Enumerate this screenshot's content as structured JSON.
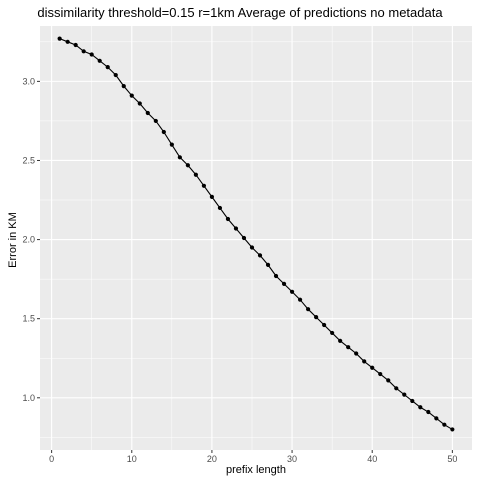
{
  "chart_data": {
    "type": "line",
    "title": "dissimilarity threshold=0.15   r=1km  Average of predictions  no metadata",
    "xlabel": "prefix length",
    "ylabel": "Error in KM",
    "xlim": [
      -1.45,
      52.45
    ],
    "ylim": [
      0.67,
      3.35
    ],
    "xticks": [
      0,
      10,
      20,
      30,
      40,
      50
    ],
    "xtick_labels": [
      "0",
      "10",
      "20",
      "30",
      "40",
      "50"
    ],
    "yticks": [
      1.0,
      1.5,
      2.0,
      2.5,
      3.0
    ],
    "ytick_labels": [
      "1.0",
      "1.5",
      "2.0",
      "2.5",
      "3.0"
    ],
    "grid": true,
    "background_color": "#ebebeb",
    "grid_color": "#ffffff",
    "series": [
      {
        "color": "#000000",
        "x": [
          1,
          2,
          3,
          4,
          5,
          6,
          7,
          8,
          9,
          10,
          11,
          12,
          13,
          14,
          15,
          16,
          17,
          18,
          19,
          20,
          21,
          22,
          23,
          24,
          25,
          26,
          27,
          28,
          29,
          30,
          31,
          32,
          33,
          34,
          35,
          36,
          37,
          38,
          39,
          40,
          41,
          42,
          43,
          44,
          45,
          46,
          47,
          48,
          49,
          50
        ],
        "y": [
          3.27,
          3.25,
          3.23,
          3.19,
          3.17,
          3.13,
          3.09,
          3.04,
          2.97,
          2.91,
          2.86,
          2.8,
          2.75,
          2.68,
          2.6,
          2.52,
          2.47,
          2.41,
          2.34,
          2.27,
          2.2,
          2.13,
          2.07,
          2.01,
          1.95,
          1.9,
          1.84,
          1.77,
          1.72,
          1.67,
          1.62,
          1.56,
          1.51,
          1.46,
          1.41,
          1.36,
          1.32,
          1.28,
          1.23,
          1.19,
          1.15,
          1.11,
          1.06,
          1.02,
          0.98,
          0.94,
          0.91,
          0.87,
          0.83,
          0.8
        ]
      }
    ]
  }
}
